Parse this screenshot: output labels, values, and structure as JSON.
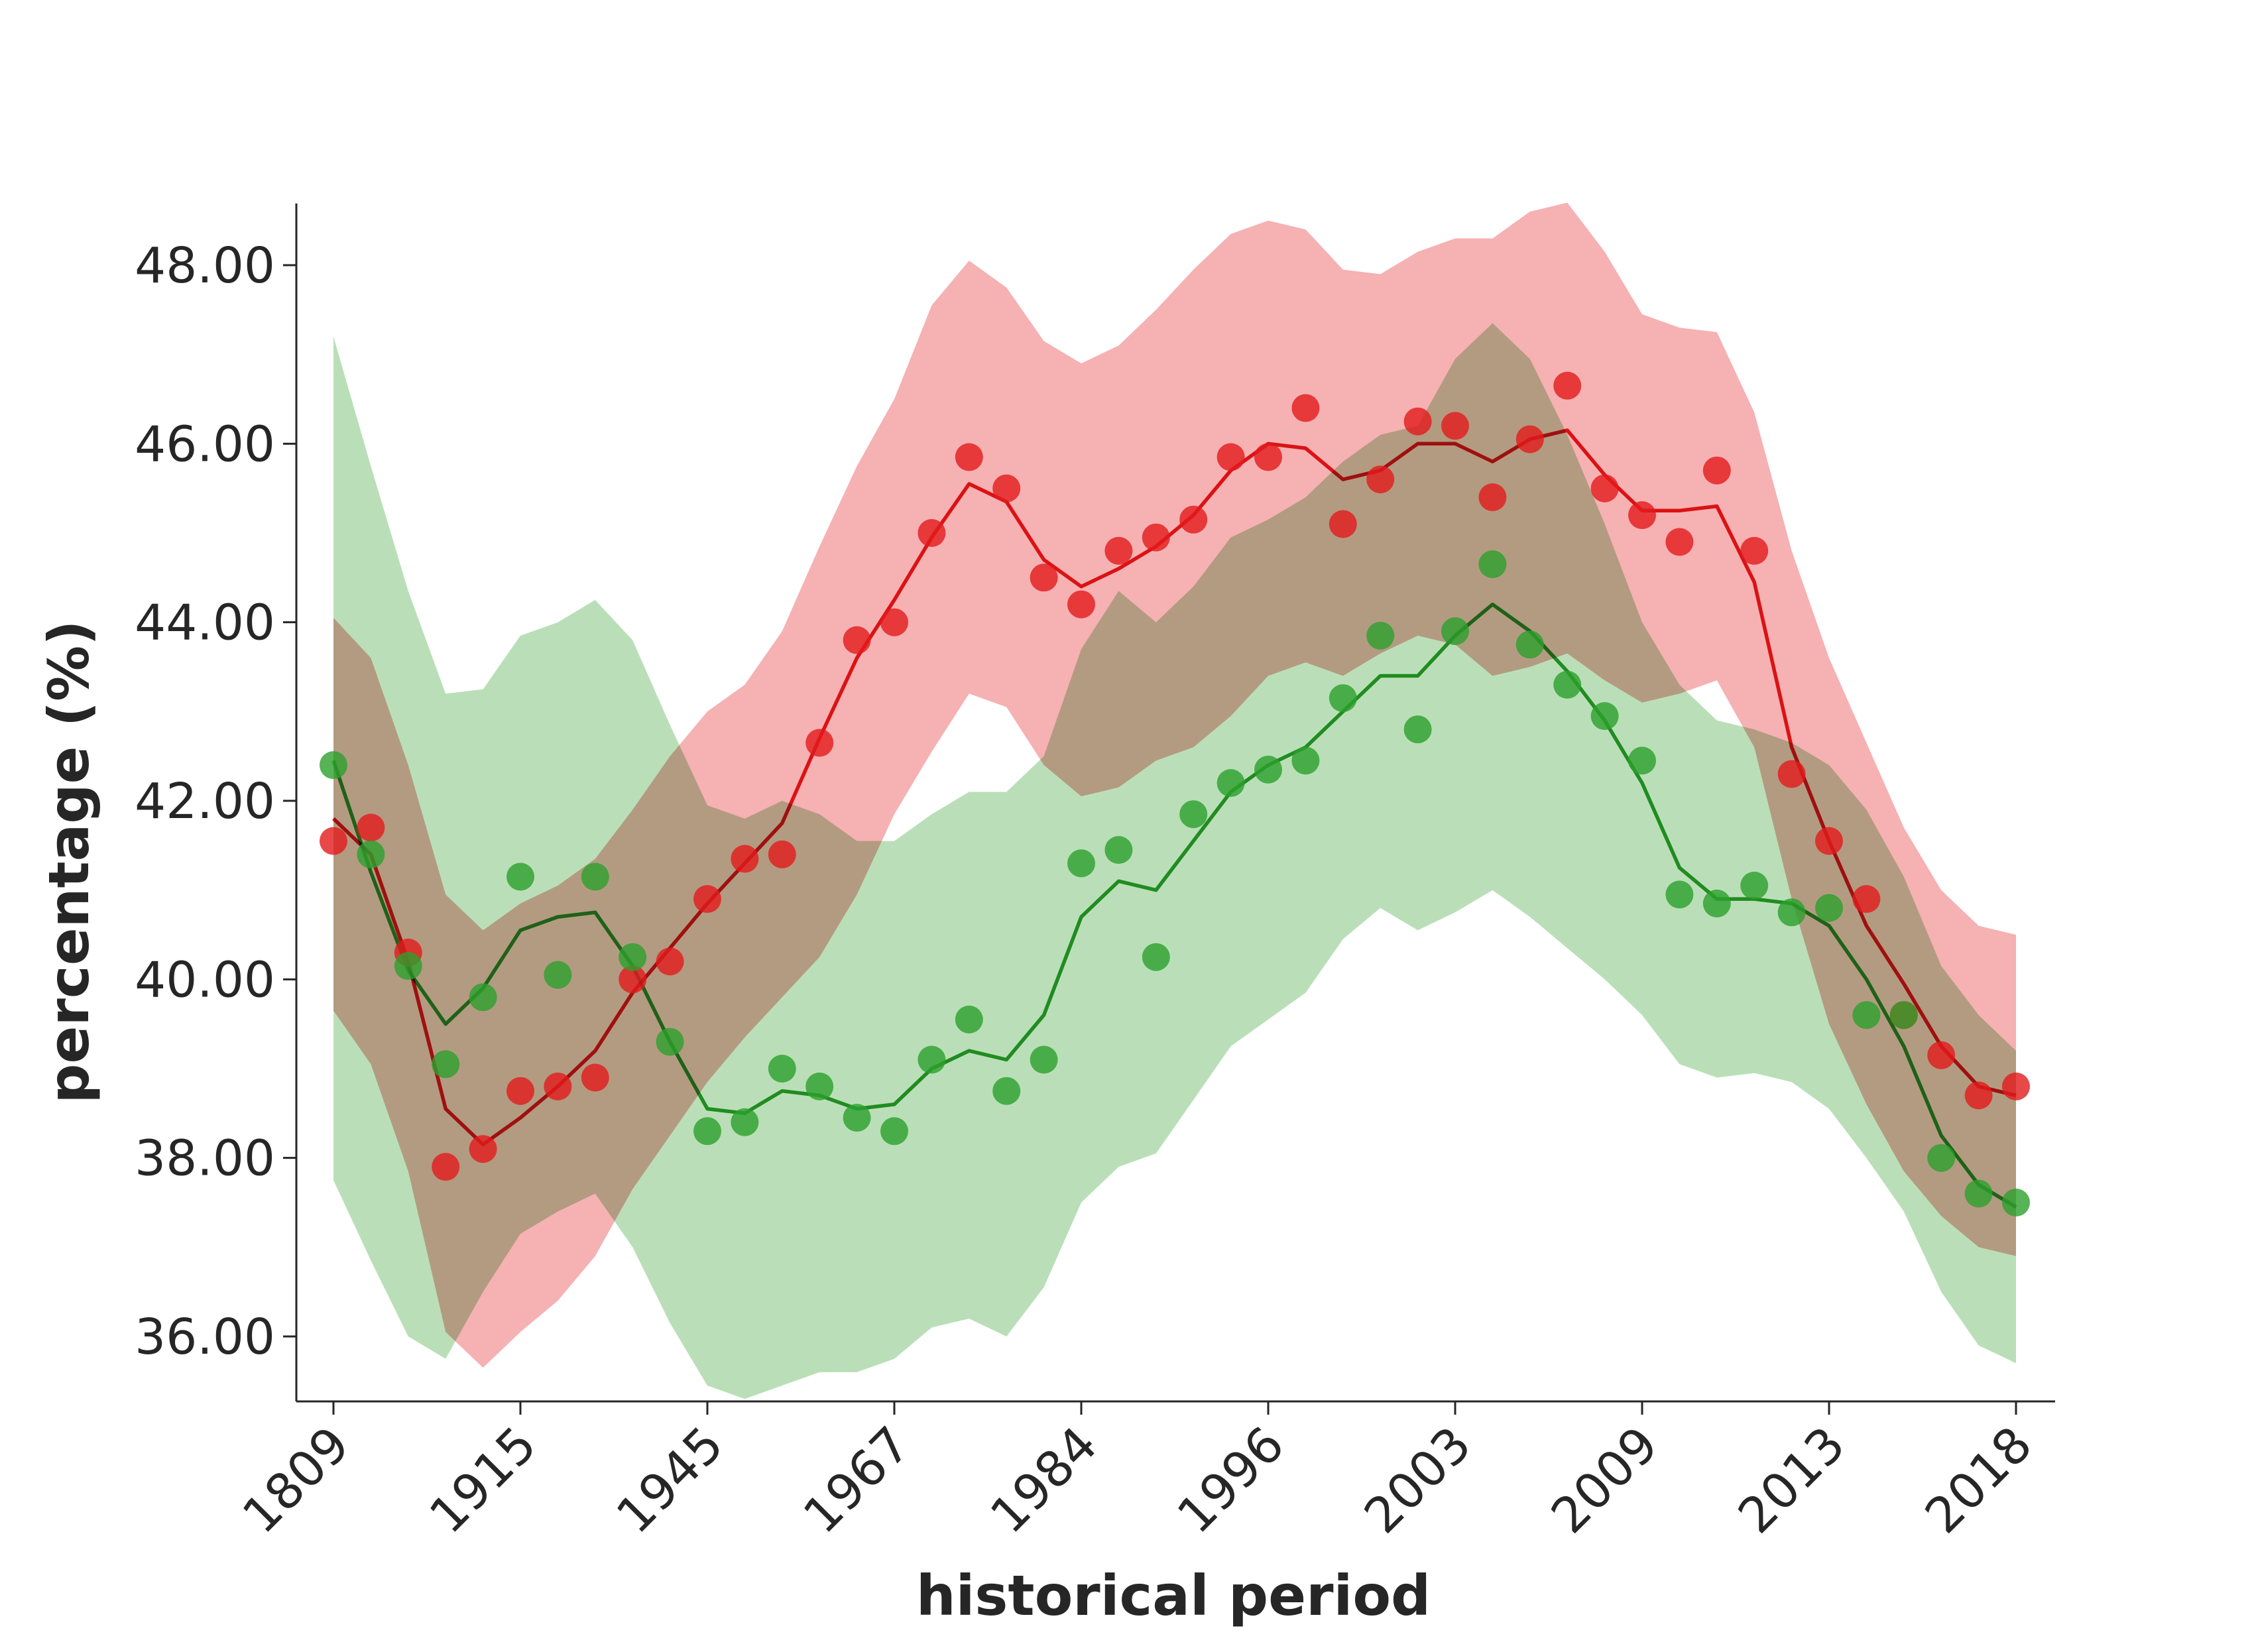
{
  "chart_data": {
    "type": "line",
    "xlabel": "historical period",
    "ylabel": "percentage (%)",
    "ylim": [
      35.3,
      48.7
    ],
    "yticks": [
      36,
      38,
      40,
      42,
      44,
      46,
      48
    ],
    "ytick_labels": [
      "36.00",
      "38.00",
      "40.00",
      "42.00",
      "44.00",
      "46.00",
      "48.00"
    ],
    "xtick_labels": [
      "1809",
      "1915",
      "1945",
      "1967",
      "1984",
      "1996",
      "2003",
      "2009",
      "2013",
      "2018"
    ],
    "xtick_every": 5,
    "grid": false,
    "legend": "none",
    "colors": {
      "red": "#e31a1c",
      "green": "#2ca02c",
      "overlap": "#a6a06f",
      "axis": "#262626"
    },
    "series": [
      {
        "color": "#e31a1c",
        "fill": "#f4a3a6",
        "points": [
          41.55,
          41.7,
          40.3,
          37.9,
          38.1,
          38.75,
          38.8,
          38.9,
          40.0,
          40.2,
          40.9,
          41.35,
          41.4,
          42.65,
          43.8,
          44.0,
          45.0,
          45.85,
          45.5,
          44.5,
          44.2,
          44.8,
          44.95,
          45.15,
          45.85,
          45.85,
          46.4,
          45.1,
          45.6,
          46.25,
          46.2,
          45.4,
          46.05,
          46.65,
          45.5,
          45.2,
          44.9,
          45.7,
          44.8,
          42.3,
          41.55,
          40.9,
          39.6,
          39.15,
          38.7,
          38.8
        ],
        "line": [
          41.8,
          41.4,
          40.2,
          38.55,
          38.15,
          38.45,
          38.8,
          39.2,
          39.85,
          40.35,
          40.85,
          41.3,
          41.75,
          42.7,
          43.6,
          44.25,
          44.95,
          45.55,
          45.35,
          44.7,
          44.4,
          44.6,
          44.85,
          45.2,
          45.7,
          46.0,
          45.95,
          45.6,
          45.7,
          46.0,
          46.0,
          45.8,
          46.05,
          46.15,
          45.65,
          45.25,
          45.25,
          45.3,
          44.45,
          42.6,
          41.55,
          40.6,
          39.95,
          39.25,
          38.8,
          38.7
        ],
        "band_upper": [
          44.05,
          43.6,
          42.4,
          40.95,
          40.55,
          40.85,
          41.05,
          41.35,
          41.9,
          42.5,
          43.0,
          43.3,
          43.9,
          44.85,
          45.75,
          46.5,
          47.55,
          48.05,
          47.75,
          47.15,
          46.9,
          47.1,
          47.5,
          47.95,
          48.35,
          48.5,
          48.4,
          47.95,
          47.9,
          48.15,
          48.3,
          48.3,
          48.6,
          48.7,
          48.15,
          47.45,
          47.3,
          47.25,
          46.35,
          44.8,
          43.6,
          42.65,
          41.7,
          41.0,
          40.6,
          40.5
        ],
        "band_lower": [
          39.65,
          39.05,
          37.85,
          36.05,
          35.65,
          36.05,
          36.4,
          36.9,
          37.65,
          38.25,
          38.85,
          39.35,
          39.8,
          40.25,
          40.95,
          41.85,
          42.55,
          43.2,
          43.05,
          42.4,
          42.05,
          42.15,
          42.45,
          42.6,
          42.95,
          43.4,
          43.55,
          43.4,
          43.65,
          43.85,
          43.75,
          43.4,
          43.5,
          43.65,
          43.35,
          43.1,
          43.2,
          43.35,
          42.6,
          40.9,
          39.5,
          38.6,
          37.85,
          37.35,
          37.0,
          36.9
        ]
      },
      {
        "color": "#2ca02c",
        "fill": "#aed9ac",
        "points": [
          42.4,
          41.4,
          40.15,
          39.05,
          39.8,
          41.15,
          40.05,
          41.15,
          40.25,
          39.3,
          38.3,
          38.4,
          39.0,
          38.8,
          38.45,
          38.3,
          39.1,
          39.55,
          38.75,
          39.1,
          41.3,
          41.45,
          40.25,
          41.85,
          42.2,
          42.35,
          42.45,
          43.15,
          43.85,
          42.8,
          43.9,
          44.65,
          43.75,
          43.3,
          42.95,
          42.45,
          40.95,
          40.85,
          41.05,
          40.75,
          40.8,
          39.6,
          39.6,
          38.0,
          37.6,
          37.5
        ],
        "line": [
          42.45,
          41.2,
          40.1,
          39.5,
          39.9,
          40.55,
          40.7,
          40.75,
          40.15,
          39.3,
          38.55,
          38.5,
          38.75,
          38.7,
          38.55,
          38.6,
          39.0,
          39.2,
          39.1,
          39.6,
          40.7,
          41.1,
          41.0,
          41.55,
          42.1,
          42.4,
          42.6,
          43.0,
          43.4,
          43.4,
          43.85,
          44.2,
          43.9,
          43.45,
          42.9,
          42.2,
          41.25,
          40.9,
          40.9,
          40.85,
          40.6,
          40.0,
          39.25,
          38.25,
          37.7,
          37.45
        ],
        "band_upper": [
          47.2,
          45.75,
          44.35,
          43.2,
          43.25,
          43.85,
          44.0,
          44.25,
          43.8,
          42.85,
          41.95,
          41.8,
          42.0,
          41.85,
          41.55,
          41.55,
          41.85,
          42.1,
          42.1,
          42.5,
          43.7,
          44.35,
          44.0,
          44.4,
          44.95,
          45.15,
          45.4,
          45.8,
          46.1,
          46.2,
          46.95,
          47.35,
          46.95,
          46.1,
          45.1,
          44.0,
          43.3,
          42.9,
          42.8,
          42.65,
          42.4,
          41.9,
          41.15,
          40.15,
          39.6,
          39.2
        ],
        "band_lower": [
          37.75,
          36.85,
          36.0,
          35.75,
          36.5,
          37.15,
          37.4,
          37.6,
          37.0,
          36.15,
          35.45,
          35.3,
          35.45,
          35.6,
          35.6,
          35.75,
          36.1,
          36.2,
          36.0,
          36.55,
          37.5,
          37.9,
          38.05,
          38.65,
          39.25,
          39.55,
          39.85,
          40.45,
          40.8,
          40.55,
          40.75,
          41.0,
          40.7,
          40.35,
          40.0,
          39.6,
          39.05,
          38.9,
          38.95,
          38.85,
          38.55,
          38.0,
          37.4,
          36.5,
          35.9,
          35.7
        ]
      }
    ]
  }
}
